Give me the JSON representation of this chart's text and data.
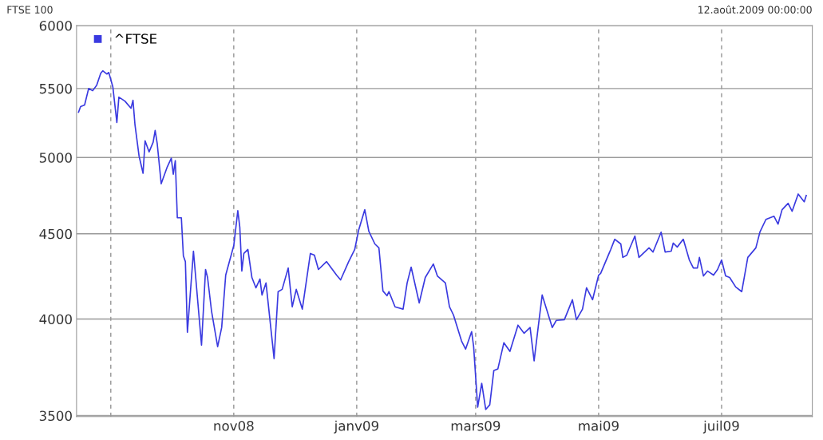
{
  "chart_data": {
    "type": "line",
    "title": "FTSE 100",
    "annotations": [
      "12.août.2009 00:00:00"
    ],
    "x": [
      "2008-08-16",
      "2008-08-17",
      "2008-08-19",
      "2008-08-21",
      "2008-08-23",
      "2008-08-25",
      "2008-08-27",
      "2008-08-28",
      "2008-08-30",
      "2008-08-31",
      "2008-09-02",
      "2008-09-04",
      "2008-09-05",
      "2008-09-08",
      "2008-09-11",
      "2008-09-12",
      "2008-09-13",
      "2008-09-15",
      "2008-09-17",
      "2008-09-18",
      "2008-09-20",
      "2008-09-22",
      "2008-09-23",
      "2008-09-24",
      "2008-09-26",
      "2008-09-29",
      "2008-10-01",
      "2008-10-02",
      "2008-10-03",
      "2008-10-04",
      "2008-10-06",
      "2008-10-07",
      "2008-10-08",
      "2008-10-09",
      "2008-10-12",
      "2008-10-16",
      "2008-10-18",
      "2008-10-19",
      "2008-10-21",
      "2008-10-24",
      "2008-10-26",
      "2008-10-28",
      "2008-11-01",
      "2008-11-03",
      "2008-11-04",
      "2008-11-05",
      "2008-11-06",
      "2008-11-08",
      "2008-11-10",
      "2008-11-12",
      "2008-11-14",
      "2008-11-15",
      "2008-11-17",
      "2008-11-21",
      "2008-11-23",
      "2008-11-25",
      "2008-11-28",
      "2008-11-30",
      "2008-12-02",
      "2008-12-05",
      "2008-12-09",
      "2008-12-11",
      "2008-12-13",
      "2008-12-17",
      "2008-12-22",
      "2008-12-24",
      "2008-12-28",
      "2008-12-31",
      "2009-01-02",
      "2009-01-05",
      "2009-01-07",
      "2009-01-10",
      "2009-01-12",
      "2009-01-14",
      "2009-01-16",
      "2009-01-17",
      "2009-01-20",
      "2009-01-24",
      "2009-01-26",
      "2009-01-28",
      "2009-02-01",
      "2009-02-04",
      "2009-02-08",
      "2009-02-10",
      "2009-02-14",
      "2009-02-16",
      "2009-02-18",
      "2009-02-22",
      "2009-02-24",
      "2009-02-27",
      "2009-02-28",
      "2009-03-02",
      "2009-03-04",
      "2009-03-06",
      "2009-03-08",
      "2009-03-10",
      "2009-03-12",
      "2009-03-15",
      "2009-03-18",
      "2009-03-22",
      "2009-03-25",
      "2009-03-28",
      "2009-03-30",
      "2009-04-01",
      "2009-04-03",
      "2009-04-08",
      "2009-04-10",
      "2009-04-14",
      "2009-04-18",
      "2009-04-20",
      "2009-04-23",
      "2009-04-25",
      "2009-04-28",
      "2009-05-01",
      "2009-05-02",
      "2009-05-07",
      "2009-05-09",
      "2009-05-12",
      "2009-05-13",
      "2009-05-15",
      "2009-05-19",
      "2009-05-21",
      "2009-05-26",
      "2009-05-28",
      "2009-06-01",
      "2009-06-03",
      "2009-06-06",
      "2009-06-07",
      "2009-06-09",
      "2009-06-12",
      "2009-06-15",
      "2009-06-17",
      "2009-06-19",
      "2009-06-20",
      "2009-06-22",
      "2009-06-24",
      "2009-06-27",
      "2009-06-29",
      "2009-07-01",
      "2009-07-03",
      "2009-07-05",
      "2009-07-08",
      "2009-07-11",
      "2009-07-14",
      "2009-07-18",
      "2009-07-20",
      "2009-07-23",
      "2009-07-25",
      "2009-07-27",
      "2009-07-29",
      "2009-07-31",
      "2009-08-03",
      "2009-08-05",
      "2009-08-08",
      "2009-08-11",
      "2009-08-12"
    ],
    "series": [
      {
        "name": "^FTSE",
        "color": "#3a3ae0",
        "values": [
          5323,
          5364,
          5376,
          5500,
          5483,
          5525,
          5617,
          5636,
          5611,
          5623,
          5513,
          5247,
          5435,
          5405,
          5352,
          5411,
          5230,
          5011,
          4892,
          5117,
          5039,
          5106,
          5190,
          5100,
          4822,
          4935,
          4995,
          4886,
          4978,
          4600,
          4600,
          4364,
          4330,
          3927,
          4393,
          3858,
          4283,
          4236,
          4041,
          3850,
          3953,
          4250,
          4427,
          4646,
          4540,
          4274,
          4379,
          4403,
          4236,
          4176,
          4227,
          4135,
          4204,
          3787,
          4154,
          4167,
          4292,
          4068,
          4167,
          4055,
          4379,
          4369,
          4283,
          4330,
          4250,
          4222,
          4330,
          4403,
          4525,
          4652,
          4515,
          4437,
          4413,
          4158,
          4131,
          4154,
          4068,
          4055,
          4204,
          4297,
          4090,
          4236,
          4316,
          4245,
          4204,
          4068,
          4022,
          3880,
          3837,
          3931,
          3850,
          3541,
          3660,
          3530,
          3553,
          3725,
          3733,
          3871,
          3825,
          3966,
          3922,
          3953,
          3775,
          3953,
          4135,
          3953,
          3992,
          3996,
          4108,
          3996,
          4055,
          4176,
          4108,
          4250,
          4260,
          4403,
          4466,
          4437,
          4355,
          4369,
          4486,
          4355,
          4413,
          4388,
          4510,
          4388,
          4393,
          4442,
          4418,
          4466,
          4340,
          4292,
          4292,
          4355,
          4245,
          4274,
          4250,
          4283,
          4340,
          4245,
          4236,
          4181,
          4154,
          4355,
          4413,
          4510,
          4590,
          4600,
          4610,
          4560,
          4652,
          4693,
          4642,
          4754,
          4703,
          4744
        ]
      }
    ],
    "log": "y",
    "xlim": [
      "2008-08-15",
      "2009-08-15"
    ],
    "xticks": [
      {
        "value": "2008-09-01",
        "label": null
      },
      {
        "value": "2008-11-01",
        "label": "nov08"
      },
      {
        "value": "2009-01-01",
        "label": "janv09"
      },
      {
        "value": "2009-03-01",
        "label": "mars09"
      },
      {
        "value": "2009-05-01",
        "label": "mai09"
      },
      {
        "value": "2009-07-01",
        "label": "juil09"
      }
    ],
    "ylim": [
      3495,
      6000
    ],
    "yticks": [
      3500,
      4000,
      4500,
      5000,
      5500,
      6000
    ],
    "grid": true,
    "legend": "top left",
    "marker": "none",
    "line_style": "solid"
  }
}
